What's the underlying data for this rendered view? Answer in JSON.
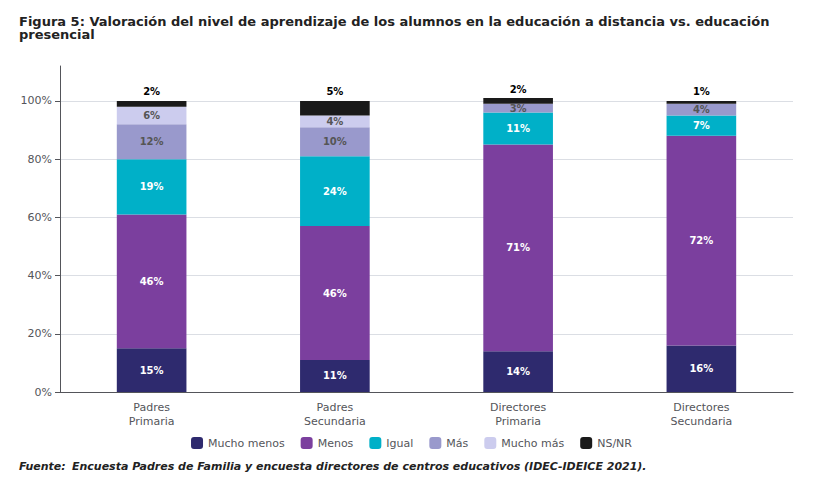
{
  "chart_data": {
    "type": "bar",
    "title": "Figura 5: Valoración del nivel de aprendizaje de los alumnos en la educación a distancia vs. educación presencial",
    "categories": [
      "Padres\nPrimaria",
      "Padres\nSecundaria",
      "Directores\nPrimaria",
      "Directores\nSecundaria"
    ],
    "series": [
      {
        "name": "Mucho menos",
        "color": "#2E2A6E",
        "values": [
          15,
          11,
          14,
          16
        ],
        "value_labels": [
          "15%",
          "11%",
          "14%",
          "16%"
        ]
      },
      {
        "name": "Menos",
        "color": "#7B3F9E",
        "values": [
          46,
          46,
          71,
          72
        ],
        "value_labels": [
          "46%",
          "46%",
          "71%",
          "72%"
        ]
      },
      {
        "name": "Igual",
        "color": "#00B0C8",
        "values": [
          19,
          24,
          11,
          7
        ],
        "value_labels": [
          "19%",
          "24%",
          "11%",
          "7%"
        ]
      },
      {
        "name": "Más",
        "color": "#9999CC",
        "values": [
          12,
          10,
          3,
          4
        ],
        "value_labels": [
          "12%",
          "10%",
          "3%",
          "4%"
        ]
      },
      {
        "name": "Mucho más",
        "color": "#CCCCEE",
        "values": [
          6,
          4,
          0,
          0
        ],
        "value_labels": [
          "6%",
          "4%",
          null,
          null
        ]
      },
      {
        "name": "NS/NR",
        "color": "#1A1A1A",
        "values": [
          2,
          5,
          2,
          1
        ],
        "value_labels": [
          "2%",
          "5%",
          "2%",
          "1%"
        ]
      }
    ],
    "stacked": true,
    "data_labels": true,
    "ylim": [
      0,
      112
    ],
    "yticks": [
      {
        "value": 0,
        "label": "0%"
      },
      {
        "value": 20,
        "label": "20%"
      },
      {
        "value": 40,
        "label": "40%"
      },
      {
        "value": 60,
        "label": "60%"
      },
      {
        "value": 80,
        "label": "80%"
      },
      {
        "value": 100,
        "label": "100%"
      }
    ],
    "grid": true,
    "legend": "bottom",
    "source_label": "Fuente:",
    "source": "Encuesta Padres de Familia y encuesta directores de centros educativos (IDEC-IDEICE 2021)."
  }
}
